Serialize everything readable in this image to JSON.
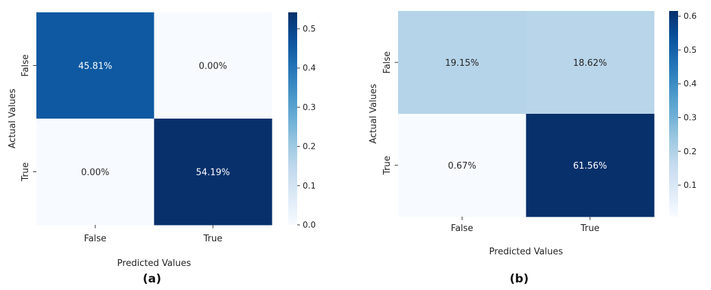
{
  "chart_data": [
    {
      "type": "heatmap",
      "panel_label": "(a)",
      "xlabel": "Predicted Values",
      "ylabel": "Actual Values",
      "x_categories": [
        "False",
        "True"
      ],
      "y_categories": [
        "False",
        "True"
      ],
      "values": [
        [
          0.4581,
          0.0
        ],
        [
          0.0,
          0.5419
        ]
      ],
      "cell_labels": [
        [
          "45.81%",
          "0.00%"
        ],
        [
          "0.00%",
          "54.19%"
        ]
      ],
      "colormap": "Blues",
      "colorbar": {
        "min": 0.0,
        "max": 0.5419,
        "ticks": [
          "0.0",
          "0.1",
          "0.2",
          "0.3",
          "0.4",
          "0.5"
        ]
      }
    },
    {
      "type": "heatmap",
      "panel_label": "(b)",
      "xlabel": "Predicted Values",
      "ylabel": "Actual Values",
      "x_categories": [
        "False",
        "True"
      ],
      "y_categories": [
        "False",
        "True"
      ],
      "values": [
        [
          0.1915,
          0.1862
        ],
        [
          0.0067,
          0.6156
        ]
      ],
      "cell_labels": [
        [
          "19.15%",
          "18.62%"
        ],
        [
          "0.67%",
          "61.56%"
        ]
      ],
      "colormap": "Blues",
      "colorbar": {
        "min": 0.0067,
        "max": 0.6156,
        "ticks": [
          "0.1",
          "0.2",
          "0.3",
          "0.4",
          "0.5",
          "0.6"
        ]
      }
    }
  ]
}
